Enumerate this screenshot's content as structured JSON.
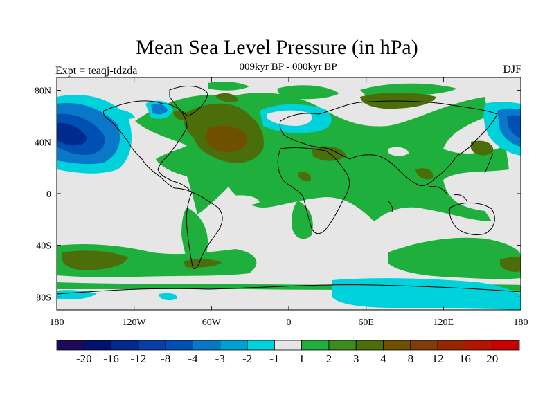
{
  "title": "Mean Sea Level Pressure (in hPa)",
  "subtitle": "009kyr BP - 000kyr BP",
  "experiment_label": "Expt = teaqj-tdzda",
  "season": "DJF",
  "map": {
    "projection": "cylindrical equidistant",
    "lon_range": [
      -180,
      180
    ],
    "lat_range": [
      -90,
      90
    ],
    "background_color": "#e6e6e6",
    "coastline_color": "#000000"
  },
  "axes": {
    "y_ticks": [
      {
        "value": 80,
        "label": "80N"
      },
      {
        "value": 40,
        "label": "40N"
      },
      {
        "value": 0,
        "label": "0"
      },
      {
        "value": -40,
        "label": "40S"
      },
      {
        "value": -80,
        "label": "80S"
      }
    ],
    "x_ticks": [
      {
        "value": -180,
        "label": "180"
      },
      {
        "value": -120,
        "label": "120W"
      },
      {
        "value": -60,
        "label": "60W"
      },
      {
        "value": 0,
        "label": "0"
      },
      {
        "value": 60,
        "label": "60E"
      },
      {
        "value": 120,
        "label": "120E"
      },
      {
        "value": 180,
        "label": "180"
      }
    ]
  },
  "colorbar": {
    "colors": [
      "#1e0a5a",
      "#00126e",
      "#002a8c",
      "#0a3ea6",
      "#0050b4",
      "#0a78c8",
      "#00a0d2",
      "#00d2dc",
      "#e6e6e6",
      "#1eaf3c",
      "#3c8c1e",
      "#4b6e0a",
      "#6e5000",
      "#823c0a",
      "#962800",
      "#b41400",
      "#c80000"
    ],
    "labels": [
      "-20",
      "-16",
      "-12",
      "-8",
      "-4",
      "-3",
      "-2",
      "-1",
      "1",
      "2",
      "3",
      "4",
      "8",
      "12",
      "16",
      "20"
    ]
  },
  "icons": {
    "map": "world-map-icon"
  }
}
